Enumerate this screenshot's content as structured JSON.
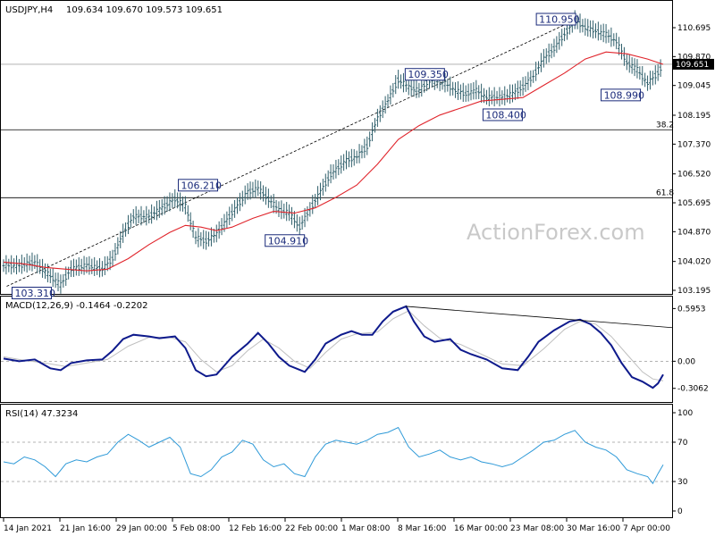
{
  "chart_data": {
    "type": "line",
    "symbol": "USDJPY,H4",
    "ohlc_header": "109.634 109.670 109.573 109.651",
    "last_price": "109.651",
    "watermark": "ActionForex.com",
    "x_ticks": [
      "14 Jan 2021",
      "21 Jan 16:00",
      "29 Jan 00:00",
      "5 Feb 08:00",
      "12 Feb 16:00",
      "22 Feb 00:00",
      "1 Mar 08:00",
      "8 Mar 16:00",
      "16 Mar 00:00",
      "23 Mar 08:00",
      "30 Mar 16:00",
      "7 Apr 00:00"
    ],
    "price_panel": {
      "y_ticks": [
        "110.695",
        "109.870",
        "109.045",
        "108.195",
        "107.370",
        "106.520",
        "105.695",
        "104.870",
        "104.020",
        "103.195"
      ],
      "ylim": [
        103.195,
        110.695
      ],
      "annotations": [
        {
          "label": "103.310",
          "value": 103.31,
          "x": 0.6
        },
        {
          "label": "106.210",
          "value": 106.21,
          "x": 39.5
        },
        {
          "label": "104.910",
          "value": 104.91,
          "x": 54.5
        },
        {
          "label": "109.350",
          "value": 109.35,
          "x": 77.5
        },
        {
          "label": "108.400",
          "value": 108.4,
          "x": 93
        },
        {
          "label": "110.950",
          "value": 110.95,
          "x": 110.5
        },
        {
          "label": "108.990",
          "value": 108.99,
          "x": 124
        }
      ],
      "fib_levels": [
        {
          "label": "38.2",
          "value": 107.78
        },
        {
          "label": "61.8",
          "value": 105.84
        }
      ],
      "trendline": [
        {
          "x": 0.6,
          "y": 103.31
        },
        {
          "x": 110.5,
          "y": 110.95
        }
      ],
      "price_series": [
        {
          "x": 0,
          "y": 103.9
        },
        {
          "x": 3,
          "y": 103.9
        },
        {
          "x": 6,
          "y": 104.0
        },
        {
          "x": 9,
          "y": 103.6
        },
        {
          "x": 11,
          "y": 103.35
        },
        {
          "x": 13,
          "y": 103.8
        },
        {
          "x": 16,
          "y": 103.9
        },
        {
          "x": 19,
          "y": 103.8
        },
        {
          "x": 21,
          "y": 104.1
        },
        {
          "x": 23,
          "y": 104.8
        },
        {
          "x": 25,
          "y": 105.3
        },
        {
          "x": 28,
          "y": 105.3
        },
        {
          "x": 30,
          "y": 105.5
        },
        {
          "x": 33,
          "y": 105.8
        },
        {
          "x": 35,
          "y": 105.6
        },
        {
          "x": 37,
          "y": 104.7
        },
        {
          "x": 39,
          "y": 104.6
        },
        {
          "x": 41,
          "y": 104.8
        },
        {
          "x": 44,
          "y": 105.4
        },
        {
          "x": 47,
          "y": 106.0
        },
        {
          "x": 49,
          "y": 106.1
        },
        {
          "x": 51,
          "y": 105.8
        },
        {
          "x": 53,
          "y": 105.5
        },
        {
          "x": 55,
          "y": 105.4
        },
        {
          "x": 57,
          "y": 105.0
        },
        {
          "x": 59,
          "y": 105.5
        },
        {
          "x": 61,
          "y": 106.0
        },
        {
          "x": 63,
          "y": 106.5
        },
        {
          "x": 66,
          "y": 106.9
        },
        {
          "x": 68,
          "y": 107.0
        },
        {
          "x": 70,
          "y": 107.3
        },
        {
          "x": 72,
          "y": 108.1
        },
        {
          "x": 74,
          "y": 108.6
        },
        {
          "x": 76,
          "y": 109.2
        },
        {
          "x": 78,
          "y": 109.0
        },
        {
          "x": 80,
          "y": 108.9
        },
        {
          "x": 82,
          "y": 109.2
        },
        {
          "x": 85,
          "y": 109.1
        },
        {
          "x": 87,
          "y": 108.9
        },
        {
          "x": 89,
          "y": 108.8
        },
        {
          "x": 91,
          "y": 108.9
        },
        {
          "x": 93,
          "y": 108.7
        },
        {
          "x": 96,
          "y": 108.7
        },
        {
          "x": 98,
          "y": 108.8
        },
        {
          "x": 100,
          "y": 109.0
        },
        {
          "x": 102,
          "y": 109.3
        },
        {
          "x": 104,
          "y": 109.8
        },
        {
          "x": 106,
          "y": 110.1
        },
        {
          "x": 108,
          "y": 110.5
        },
        {
          "x": 110,
          "y": 110.9
        },
        {
          "x": 112,
          "y": 110.7
        },
        {
          "x": 114,
          "y": 110.6
        },
        {
          "x": 116,
          "y": 110.5
        },
        {
          "x": 118,
          "y": 110.3
        },
        {
          "x": 120,
          "y": 109.7
        },
        {
          "x": 122,
          "y": 109.5
        },
        {
          "x": 124,
          "y": 109.1
        },
        {
          "x": 126,
          "y": 109.4
        },
        {
          "x": 127,
          "y": 109.65
        }
      ],
      "ma_series": [
        {
          "x": 0,
          "y": 104.0
        },
        {
          "x": 4,
          "y": 103.95
        },
        {
          "x": 8,
          "y": 103.85
        },
        {
          "x": 12,
          "y": 103.8
        },
        {
          "x": 16,
          "y": 103.75
        },
        {
          "x": 20,
          "y": 103.8
        },
        {
          "x": 24,
          "y": 104.1
        },
        {
          "x": 28,
          "y": 104.5
        },
        {
          "x": 32,
          "y": 104.85
        },
        {
          "x": 35,
          "y": 105.05
        },
        {
          "x": 38,
          "y": 105.0
        },
        {
          "x": 41,
          "y": 104.9
        },
        {
          "x": 44,
          "y": 105.0
        },
        {
          "x": 48,
          "y": 105.25
        },
        {
          "x": 52,
          "y": 105.45
        },
        {
          "x": 56,
          "y": 105.4
        },
        {
          "x": 60,
          "y": 105.55
        },
        {
          "x": 64,
          "y": 105.85
        },
        {
          "x": 68,
          "y": 106.2
        },
        {
          "x": 72,
          "y": 106.8
        },
        {
          "x": 76,
          "y": 107.5
        },
        {
          "x": 80,
          "y": 107.9
        },
        {
          "x": 84,
          "y": 108.2
        },
        {
          "x": 88,
          "y": 108.4
        },
        {
          "x": 92,
          "y": 108.6
        },
        {
          "x": 96,
          "y": 108.65
        },
        {
          "x": 100,
          "y": 108.7
        },
        {
          "x": 104,
          "y": 109.05
        },
        {
          "x": 108,
          "y": 109.4
        },
        {
          "x": 112,
          "y": 109.8
        },
        {
          "x": 116,
          "y": 110.0
        },
        {
          "x": 120,
          "y": 109.95
        },
        {
          "x": 124,
          "y": 109.8
        },
        {
          "x": 127,
          "y": 109.65
        }
      ]
    },
    "macd_panel": {
      "header": "MACD(12,26,9) -0.1464 -0.2202",
      "y_ticks": [
        "0.5953",
        "0.00",
        "-0.3062"
      ],
      "ylim": [
        -0.42,
        0.68
      ],
      "zero_line": 0.0,
      "trendline": [
        {
          "x": 77.5,
          "y": 0.62
        },
        {
          "x": 127,
          "y": 0.38
        }
      ],
      "macd_series": [
        {
          "x": 0,
          "y": 0.03
        },
        {
          "x": 3,
          "y": 0.0
        },
        {
          "x": 6,
          "y": 0.02
        },
        {
          "x": 9,
          "y": -0.08
        },
        {
          "x": 11,
          "y": -0.1
        },
        {
          "x": 13,
          "y": -0.02
        },
        {
          "x": 16,
          "y": 0.01
        },
        {
          "x": 19,
          "y": 0.02
        },
        {
          "x": 21,
          "y": 0.12
        },
        {
          "x": 23,
          "y": 0.25
        },
        {
          "x": 25,
          "y": 0.3
        },
        {
          "x": 28,
          "y": 0.28
        },
        {
          "x": 30,
          "y": 0.26
        },
        {
          "x": 33,
          "y": 0.28
        },
        {
          "x": 35,
          "y": 0.15
        },
        {
          "x": 37,
          "y": -0.1
        },
        {
          "x": 39,
          "y": -0.17
        },
        {
          "x": 41,
          "y": -0.15
        },
        {
          "x": 44,
          "y": 0.05
        },
        {
          "x": 47,
          "y": 0.2
        },
        {
          "x": 49,
          "y": 0.32
        },
        {
          "x": 51,
          "y": 0.2
        },
        {
          "x": 53,
          "y": 0.05
        },
        {
          "x": 55,
          "y": -0.05
        },
        {
          "x": 58,
          "y": -0.12
        },
        {
          "x": 60,
          "y": 0.02
        },
        {
          "x": 62,
          "y": 0.2
        },
        {
          "x": 65,
          "y": 0.3
        },
        {
          "x": 67,
          "y": 0.34
        },
        {
          "x": 69,
          "y": 0.3
        },
        {
          "x": 71,
          "y": 0.3
        },
        {
          "x": 73,
          "y": 0.45
        },
        {
          "x": 75,
          "y": 0.56
        },
        {
          "x": 77.5,
          "y": 0.62
        },
        {
          "x": 79,
          "y": 0.45
        },
        {
          "x": 81,
          "y": 0.28
        },
        {
          "x": 83,
          "y": 0.22
        },
        {
          "x": 86,
          "y": 0.25
        },
        {
          "x": 88,
          "y": 0.13
        },
        {
          "x": 90,
          "y": 0.08
        },
        {
          "x": 93,
          "y": 0.02
        },
        {
          "x": 96,
          "y": -0.08
        },
        {
          "x": 99,
          "y": -0.1
        },
        {
          "x": 101,
          "y": 0.05
        },
        {
          "x": 103,
          "y": 0.22
        },
        {
          "x": 106,
          "y": 0.35
        },
        {
          "x": 109,
          "y": 0.45
        },
        {
          "x": 111,
          "y": 0.47
        },
        {
          "x": 113,
          "y": 0.42
        },
        {
          "x": 115,
          "y": 0.32
        },
        {
          "x": 117,
          "y": 0.18
        },
        {
          "x": 119,
          "y": -0.02
        },
        {
          "x": 121,
          "y": -0.18
        },
        {
          "x": 123,
          "y": -0.23
        },
        {
          "x": 125,
          "y": -0.3
        },
        {
          "x": 126,
          "y": -0.25
        },
        {
          "x": 127,
          "y": -0.15
        }
      ],
      "signal_series": [
        {
          "x": 0,
          "y": 0.05
        },
        {
          "x": 4,
          "y": 0.01
        },
        {
          "x": 8,
          "y": -0.02
        },
        {
          "x": 12,
          "y": -0.06
        },
        {
          "x": 16,
          "y": -0.02
        },
        {
          "x": 20,
          "y": 0.02
        },
        {
          "x": 24,
          "y": 0.17
        },
        {
          "x": 28,
          "y": 0.27
        },
        {
          "x": 32,
          "y": 0.27
        },
        {
          "x": 35,
          "y": 0.22
        },
        {
          "x": 38,
          "y": 0.02
        },
        {
          "x": 41,
          "y": -0.12
        },
        {
          "x": 44,
          "y": -0.05
        },
        {
          "x": 47,
          "y": 0.12
        },
        {
          "x": 50,
          "y": 0.25
        },
        {
          "x": 53,
          "y": 0.15
        },
        {
          "x": 56,
          "y": 0.0
        },
        {
          "x": 59,
          "y": -0.08
        },
        {
          "x": 62,
          "y": 0.1
        },
        {
          "x": 65,
          "y": 0.25
        },
        {
          "x": 68,
          "y": 0.31
        },
        {
          "x": 72,
          "y": 0.33
        },
        {
          "x": 75,
          "y": 0.48
        },
        {
          "x": 78,
          "y": 0.57
        },
        {
          "x": 81,
          "y": 0.4
        },
        {
          "x": 84,
          "y": 0.26
        },
        {
          "x": 88,
          "y": 0.19
        },
        {
          "x": 92,
          "y": 0.08
        },
        {
          "x": 96,
          "y": -0.03
        },
        {
          "x": 100,
          "y": -0.05
        },
        {
          "x": 104,
          "y": 0.14
        },
        {
          "x": 108,
          "y": 0.36
        },
        {
          "x": 111,
          "y": 0.45
        },
        {
          "x": 114,
          "y": 0.42
        },
        {
          "x": 117,
          "y": 0.28
        },
        {
          "x": 120,
          "y": 0.08
        },
        {
          "x": 123,
          "y": -0.12
        },
        {
          "x": 125,
          "y": -0.2
        },
        {
          "x": 127,
          "y": -0.22
        }
      ]
    },
    "rsi_panel": {
      "header": "RSI(14) 47.3234",
      "y_ticks": [
        "100",
        "70",
        "30",
        "0"
      ],
      "ylim": [
        0,
        100
      ],
      "levels": [
        70,
        30
      ],
      "rsi_series": [
        {
          "x": 0,
          "y": 50
        },
        {
          "x": 2,
          "y": 48
        },
        {
          "x": 4,
          "y": 55
        },
        {
          "x": 6,
          "y": 52
        },
        {
          "x": 8,
          "y": 45
        },
        {
          "x": 10,
          "y": 35
        },
        {
          "x": 12,
          "y": 48
        },
        {
          "x": 14,
          "y": 52
        },
        {
          "x": 16,
          "y": 50
        },
        {
          "x": 18,
          "y": 55
        },
        {
          "x": 20,
          "y": 58
        },
        {
          "x": 22,
          "y": 70
        },
        {
          "x": 24,
          "y": 78
        },
        {
          "x": 26,
          "y": 72
        },
        {
          "x": 28,
          "y": 65
        },
        {
          "x": 30,
          "y": 70
        },
        {
          "x": 32,
          "y": 75
        },
        {
          "x": 34,
          "y": 65
        },
        {
          "x": 36,
          "y": 38
        },
        {
          "x": 38,
          "y": 35
        },
        {
          "x": 40,
          "y": 42
        },
        {
          "x": 42,
          "y": 55
        },
        {
          "x": 44,
          "y": 60
        },
        {
          "x": 46,
          "y": 72
        },
        {
          "x": 48,
          "y": 68
        },
        {
          "x": 50,
          "y": 52
        },
        {
          "x": 52,
          "y": 45
        },
        {
          "x": 54,
          "y": 48
        },
        {
          "x": 56,
          "y": 38
        },
        {
          "x": 58,
          "y": 35
        },
        {
          "x": 60,
          "y": 55
        },
        {
          "x": 62,
          "y": 68
        },
        {
          "x": 64,
          "y": 72
        },
        {
          "x": 66,
          "y": 70
        },
        {
          "x": 68,
          "y": 68
        },
        {
          "x": 70,
          "y": 72
        },
        {
          "x": 72,
          "y": 78
        },
        {
          "x": 74,
          "y": 80
        },
        {
          "x": 76,
          "y": 85
        },
        {
          "x": 78,
          "y": 65
        },
        {
          "x": 80,
          "y": 55
        },
        {
          "x": 82,
          "y": 58
        },
        {
          "x": 84,
          "y": 62
        },
        {
          "x": 86,
          "y": 55
        },
        {
          "x": 88,
          "y": 52
        },
        {
          "x": 90,
          "y": 55
        },
        {
          "x": 92,
          "y": 50
        },
        {
          "x": 94,
          "y": 48
        },
        {
          "x": 96,
          "y": 45
        },
        {
          "x": 98,
          "y": 48
        },
        {
          "x": 100,
          "y": 55
        },
        {
          "x": 102,
          "y": 62
        },
        {
          "x": 104,
          "y": 70
        },
        {
          "x": 106,
          "y": 72
        },
        {
          "x": 108,
          "y": 78
        },
        {
          "x": 110,
          "y": 82
        },
        {
          "x": 112,
          "y": 70
        },
        {
          "x": 114,
          "y": 65
        },
        {
          "x": 116,
          "y": 62
        },
        {
          "x": 118,
          "y": 55
        },
        {
          "x": 120,
          "y": 42
        },
        {
          "x": 122,
          "y": 38
        },
        {
          "x": 124,
          "y": 35
        },
        {
          "x": 125,
          "y": 28
        },
        {
          "x": 126,
          "y": 38
        },
        {
          "x": 127,
          "y": 47
        }
      ]
    },
    "colors": {
      "price": "#2f5f6b",
      "ma": "#e0242b",
      "macd": "#0e1a8c",
      "signal": "#bfbfbf",
      "rsi": "#2f9ad8",
      "box_border": "#1a2a7a",
      "grid": "#c8c8c8",
      "dashed": "#9a9a9a"
    },
    "x_range": [
      0,
      127
    ]
  }
}
